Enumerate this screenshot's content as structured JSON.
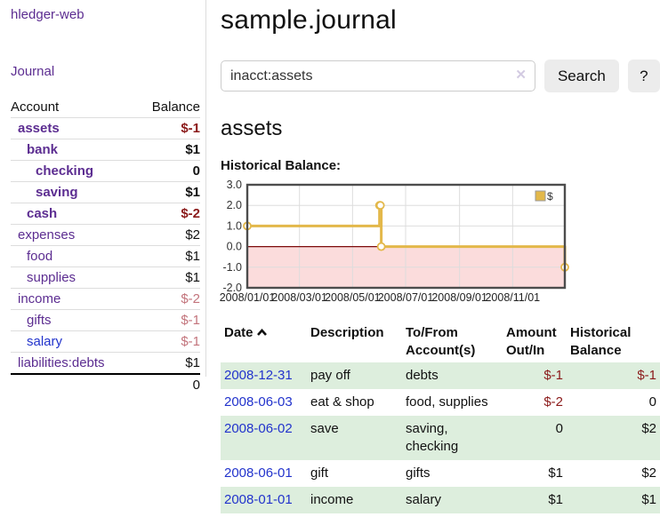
{
  "app": {
    "title": "hledger-web",
    "nav_journal": "Journal"
  },
  "sidebar": {
    "accounts_header": {
      "account": "Account",
      "balance": "Balance"
    },
    "accounts": [
      {
        "name": "assets",
        "balance": "$-1"
      },
      {
        "name": "bank",
        "balance": "$1"
      },
      {
        "name": "checking",
        "balance": "0"
      },
      {
        "name": "saving",
        "balance": "$1"
      },
      {
        "name": "cash",
        "balance": "$-2"
      },
      {
        "name": "expenses",
        "balance": "$2"
      },
      {
        "name": "food",
        "balance": "$1"
      },
      {
        "name": "supplies",
        "balance": "$1"
      },
      {
        "name": "income",
        "balance": "$-2"
      },
      {
        "name": "gifts",
        "balance": "$-1"
      },
      {
        "name": "salary",
        "balance": "$-1"
      },
      {
        "name": "liabilities:debts",
        "balance": "$1"
      }
    ],
    "total": "0"
  },
  "header": {
    "title": "sample.journal"
  },
  "search": {
    "value": "inacct:assets",
    "clear_icon": "✕",
    "button": "Search",
    "help_button": "?"
  },
  "main": {
    "account_title": "assets",
    "chart_label": "Historical Balance:"
  },
  "chart_data": {
    "type": "line",
    "title": "Historical Balance",
    "step": true,
    "grid": true,
    "legend": [
      "$"
    ],
    "legend_position": "top-right",
    "ylim": [
      -2.0,
      3.0
    ],
    "ytick_values": [
      3,
      2,
      1,
      0,
      -1,
      -2
    ],
    "yticks": [
      "3.0",
      "2.0",
      "1.0",
      "0.0",
      "-1.0",
      "-2.0"
    ],
    "xtick_days": [
      0,
      60,
      121,
      182,
      244,
      305
    ],
    "xtick_labels": [
      "2008/01/01",
      "2008/03/01",
      "2008/05/01",
      "2008/07/01",
      "2008/09/01",
      "2008/11/01"
    ],
    "x_range_days": [
      0,
      365
    ],
    "series": [
      {
        "name": "$",
        "color": "#e3b84a",
        "points": [
          {
            "date": "2008-01-01",
            "day": 0,
            "value": 1
          },
          {
            "date": "2008-06-01",
            "day": 152,
            "value": 2
          },
          {
            "date": "2008-06-02",
            "day": 153,
            "value": 2
          },
          {
            "date": "2008-06-03",
            "day": 154,
            "value": 0
          },
          {
            "date": "2008-12-31",
            "day": 365,
            "value": -1
          }
        ]
      }
    ],
    "zero_line_color": "#7d0b0b",
    "negative_region_color": "#fbdcdc",
    "plot_border_color": "#4d4d4d",
    "grid_color": "#dddddd"
  },
  "register": {
    "columns": {
      "date": "Date",
      "description": "Description",
      "account": "To/From\nAccount(s)",
      "amount": "Amount\nOut/In",
      "balance": "Historical\nBalance"
    },
    "rows": [
      {
        "date": "2008-12-31",
        "description": "pay off",
        "accounts": "debts",
        "amount": "$-1",
        "balance": "$-1"
      },
      {
        "date": "2008-06-03",
        "description": "eat & shop",
        "accounts": "food, supplies",
        "amount": "$-2",
        "balance": "0"
      },
      {
        "date": "2008-06-02",
        "description": "save",
        "accounts": "saving,\nchecking",
        "amount": "0",
        "balance": "$2"
      },
      {
        "date": "2008-06-01",
        "description": "gift",
        "accounts": "gifts",
        "amount": "$1",
        "balance": "$2"
      },
      {
        "date": "2008-01-01",
        "description": "income",
        "accounts": "salary",
        "amount": "$1",
        "balance": "$1"
      }
    ]
  }
}
